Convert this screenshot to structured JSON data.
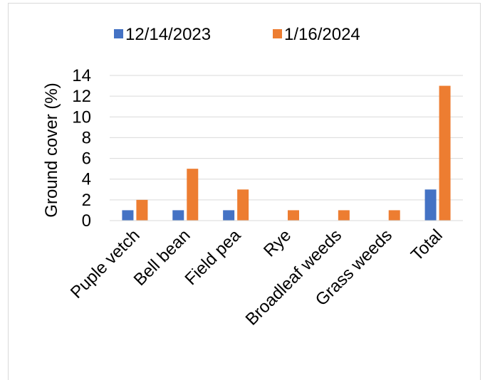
{
  "chart_data": {
    "type": "bar",
    "categories": [
      "Puple vetch",
      "Bell bean",
      "Field pea",
      "Rye",
      "Broadleaf weeds",
      "Grass weeds",
      "Total"
    ],
    "series": [
      {
        "name": "12/14/2023",
        "color": "#4472c4",
        "values": [
          1,
          1,
          1,
          0,
          0,
          0,
          3
        ]
      },
      {
        "name": "1/16/2024",
        "color": "#ed7d31",
        "values": [
          2,
          5,
          3,
          1,
          1,
          1,
          13
        ]
      }
    ],
    "title": "",
    "xlabel": "",
    "ylabel": "Ground cover (%)",
    "ylim": [
      0,
      14
    ],
    "yticks": [
      "0",
      "2",
      "4",
      "6",
      "8",
      "10",
      "12",
      "14"
    ],
    "grid": true,
    "legend_position": "top"
  }
}
